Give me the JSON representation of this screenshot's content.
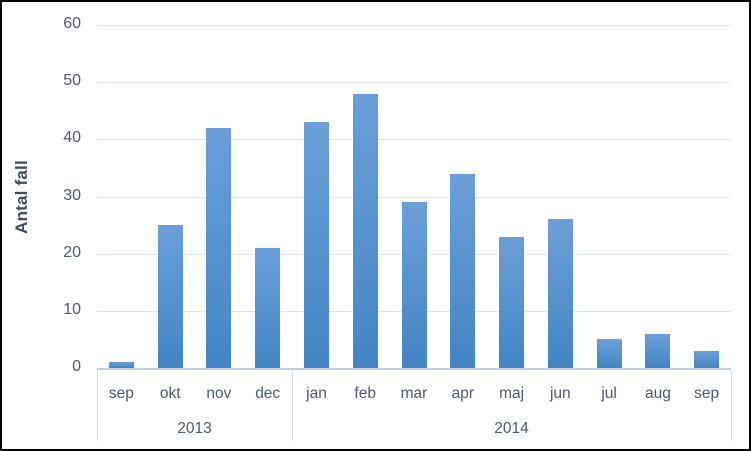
{
  "chart_data": {
    "type": "bar",
    "title": "",
    "ylabel": "Antal fall",
    "xlabel": "",
    "ylim": [
      0,
      60
    ],
    "yticks": [
      0,
      10,
      20,
      30,
      40,
      50,
      60
    ],
    "categories": [
      "sep",
      "okt",
      "nov",
      "dec",
      "jan",
      "feb",
      "mar",
      "apr",
      "maj",
      "jun",
      "jul",
      "aug",
      "sep"
    ],
    "values": [
      1,
      25,
      42,
      21,
      43,
      48,
      29,
      34,
      23,
      26,
      5,
      6,
      3
    ],
    "year_groups": [
      {
        "label": "2013",
        "span": 4
      },
      {
        "label": "2014",
        "span": 9
      }
    ],
    "grid": true,
    "legend": false,
    "colors": {
      "bar_top": "#6C9FD8",
      "bar_bottom": "#4285C4",
      "gridline": "#E2E6EC",
      "axis_line": "#C2CEDE",
      "divider_line": "#D5D9DF",
      "tick_text": "#4C5A6D",
      "title_text": "#3E4D62",
      "frame_border": "#000000"
    }
  }
}
